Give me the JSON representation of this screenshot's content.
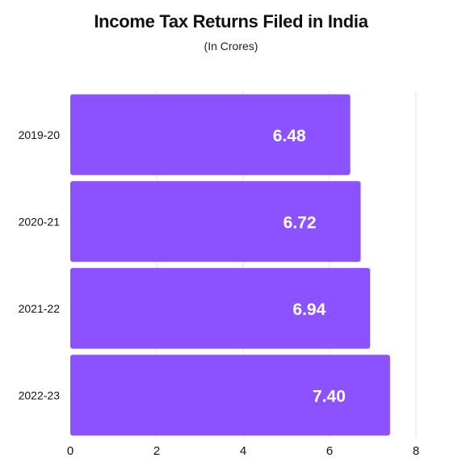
{
  "chart_data": {
    "type": "bar",
    "orientation": "horizontal",
    "title": "Income Tax Returns Filed in India",
    "subtitle": "(In Crores)",
    "categories": [
      "2019-20",
      "2020-21",
      "2021-22",
      "2022-23"
    ],
    "values": [
      6.48,
      6.72,
      6.94,
      7.4
    ],
    "data_labels": [
      "6.48",
      "6.72",
      "6.94",
      "7.40"
    ],
    "xticks": [
      0,
      2,
      4,
      6,
      8
    ],
    "xlim": [
      0,
      8
    ],
    "grid": true,
    "bar_color": "#8c52ff"
  }
}
